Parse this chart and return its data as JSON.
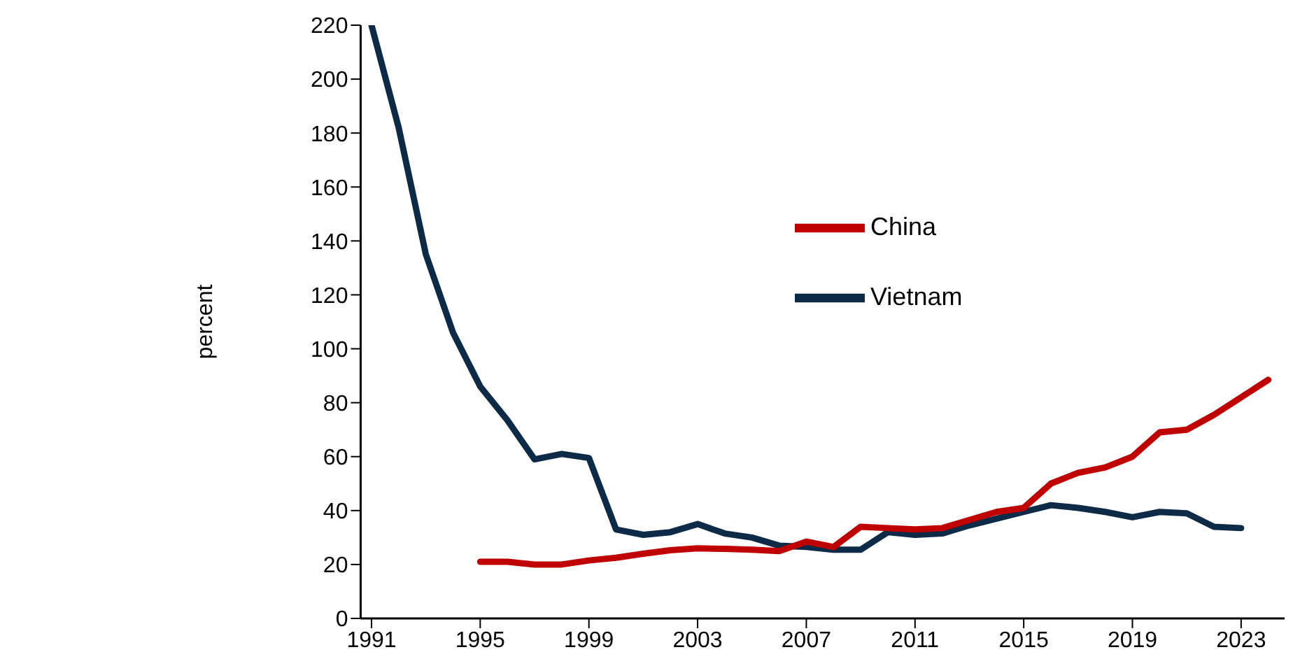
{
  "chart_data": {
    "type": "line",
    "ylabel": "percent",
    "x": [
      1991,
      1992,
      1993,
      1994,
      1995,
      1996,
      1997,
      1998,
      1999,
      2000,
      2001,
      2002,
      2003,
      2004,
      2005,
      2006,
      2007,
      2008,
      2009,
      2010,
      2011,
      2012,
      2013,
      2014,
      2015,
      2016,
      2017,
      2018,
      2019,
      2020,
      2021,
      2022,
      2023,
      2024
    ],
    "series": [
      {
        "name": "Vietnam",
        "color": "#0d2a47",
        "values": [
          220,
          182,
          135,
          106,
          86,
          73.5,
          59,
          61,
          59.5,
          33,
          31,
          32,
          35,
          31.5,
          30,
          27,
          26.5,
          25.5,
          25.5,
          32,
          31,
          31.5,
          34.5,
          37,
          39.5,
          42,
          41,
          39.5,
          37.5,
          39.5,
          39,
          34,
          33.5,
          null
        ]
      },
      {
        "name": "China",
        "color": "#c00000",
        "values": [
          null,
          null,
          null,
          null,
          21,
          21,
          20,
          20,
          21.5,
          22.5,
          24,
          25.3,
          26,
          25.8,
          25.5,
          25,
          28.5,
          26.5,
          34,
          33.5,
          33,
          33.5,
          36.5,
          39.5,
          41,
          50,
          54,
          56,
          60,
          69,
          70,
          75.5,
          82,
          88.5
        ]
      }
    ],
    "xlim": [
      1990.6,
      2024.6
    ],
    "xticks": [
      1991,
      1995,
      1999,
      2003,
      2007,
      2011,
      2015,
      2019,
      2023
    ],
    "ylim": [
      0,
      220
    ],
    "yticks": [
      0,
      20,
      40,
      60,
      80,
      100,
      120,
      140,
      160,
      180,
      200,
      220
    ],
    "grid": false,
    "legend": "right",
    "marker": "none",
    "line_style": "solid"
  }
}
